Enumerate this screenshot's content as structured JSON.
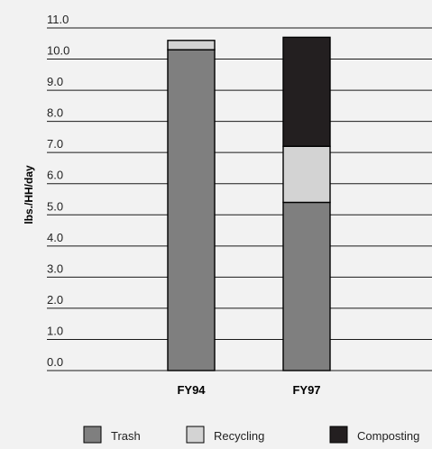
{
  "chart_data": {
    "type": "bar",
    "stacked": true,
    "ylabel": "lbs./HH/day",
    "ylim": [
      0,
      11
    ],
    "yticks": [
      "0.0",
      "1.0",
      "2.0",
      "3.0",
      "4.0",
      "5.0",
      "6.0",
      "7.0",
      "8.0",
      "9.0",
      "10.0",
      "11.0"
    ],
    "categories": [
      "FY94",
      "FY97"
    ],
    "series": [
      {
        "name": "Trash",
        "values": [
          10.3,
          5.4
        ],
        "color": "#7f7f7f"
      },
      {
        "name": "Recycling",
        "values": [
          0.3,
          1.8
        ],
        "color": "#d3d3d3"
      },
      {
        "name": "Composting",
        "values": [
          0.0,
          3.5
        ],
        "color": "#231f20"
      }
    ],
    "legend_position": "bottom",
    "grid": true
  }
}
